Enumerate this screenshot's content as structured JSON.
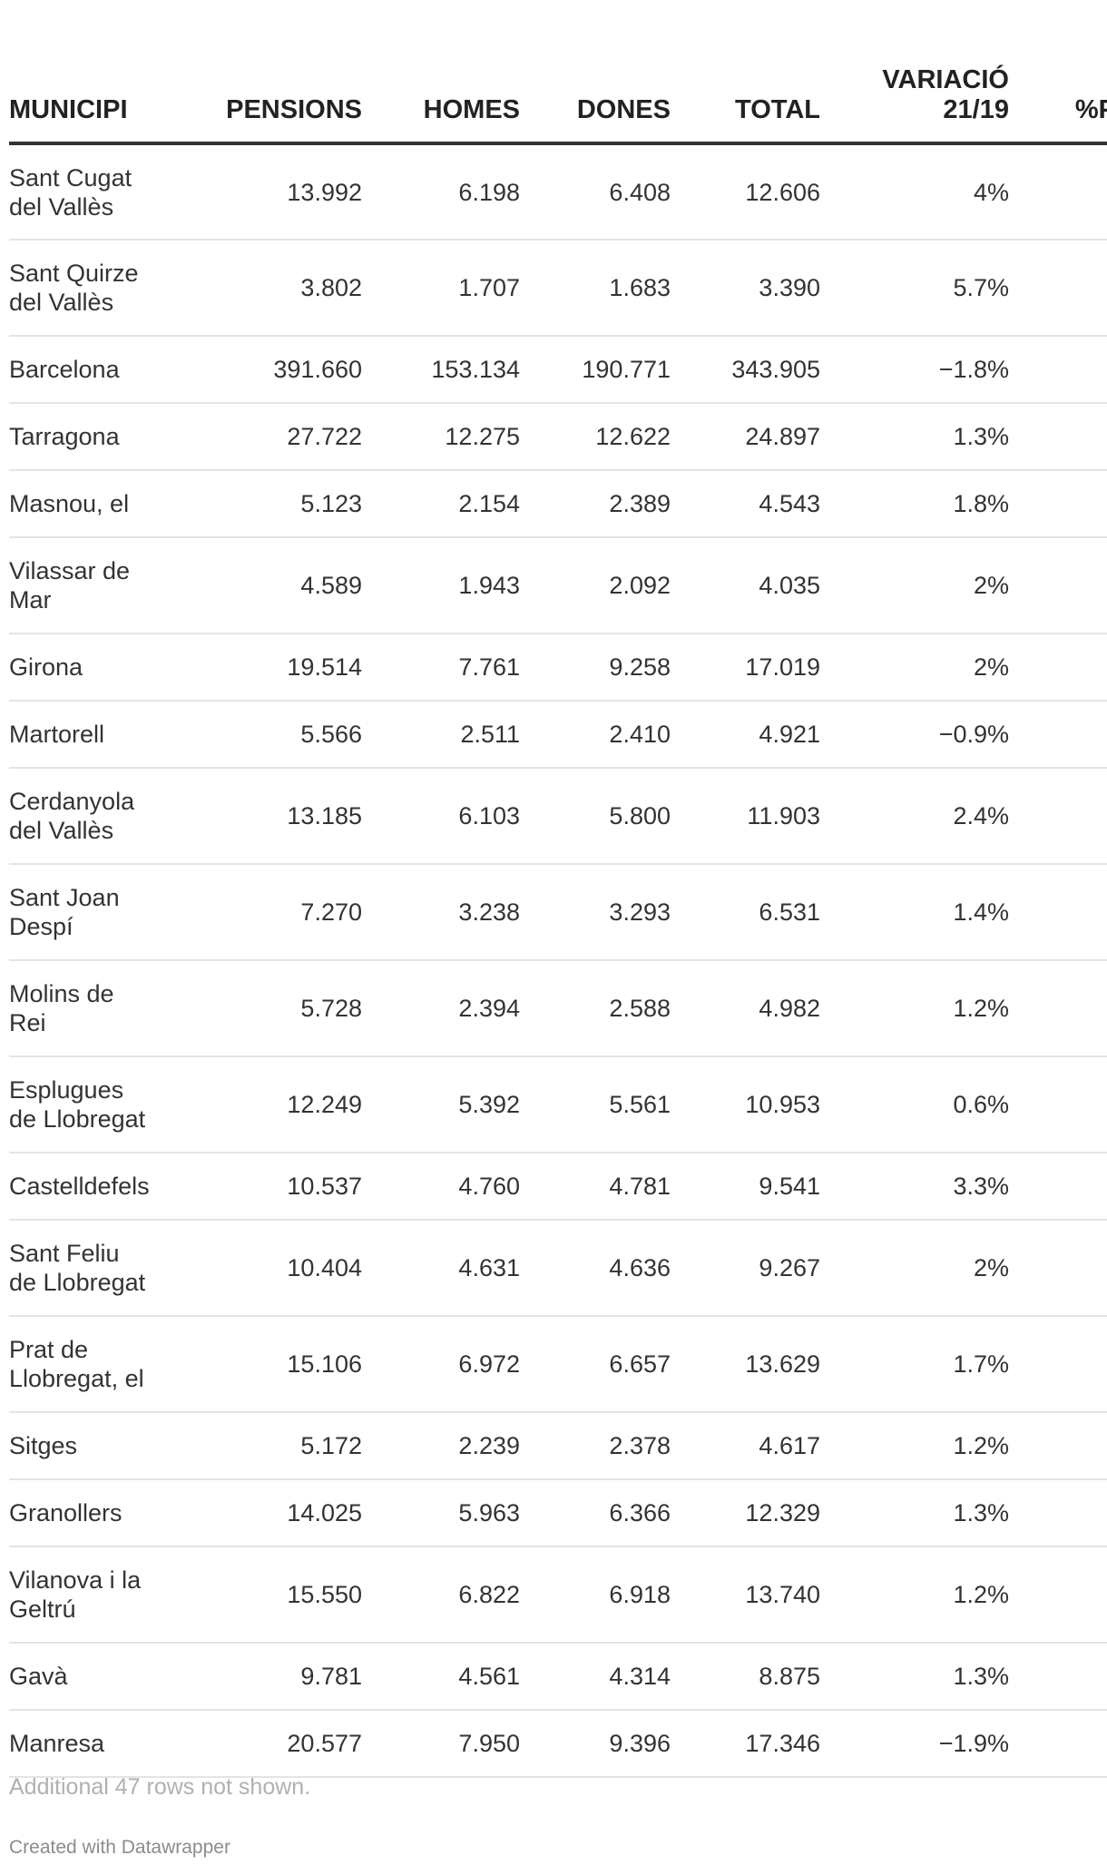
{
  "table": {
    "headers": {
      "municipi": "MUNICIPI",
      "pensions": "PENSIONS",
      "homes": "HOMES",
      "dones": "DONES",
      "total": "TOTAL",
      "variacio_line1": "VARIACIÓ",
      "variacio_line2": "21/19",
      "pct": "%P"
    },
    "rows": [
      {
        "municipi": "Sant Cugat del Vallès",
        "pensions": "13.992",
        "homes": "6.198",
        "dones": "6.408",
        "total": "12.606",
        "variacio": "4%",
        "pct": ""
      },
      {
        "municipi": "Sant Quirze del Vallès",
        "pensions": "3.802",
        "homes": "1.707",
        "dones": "1.683",
        "total": "3.390",
        "variacio": "5.7%",
        "pct": ""
      },
      {
        "municipi": "Barcelona",
        "pensions": "391.660",
        "homes": "153.134",
        "dones": "190.771",
        "total": "343.905",
        "variacio": "−1.8%",
        "pct": ""
      },
      {
        "municipi": "Tarragona",
        "pensions": "27.722",
        "homes": "12.275",
        "dones": "12.622",
        "total": "24.897",
        "variacio": "1.3%",
        "pct": ""
      },
      {
        "municipi": "Masnou, el",
        "pensions": "5.123",
        "homes": "2.154",
        "dones": "2.389",
        "total": "4.543",
        "variacio": "1.8%",
        "pct": ""
      },
      {
        "municipi": "Vilassar de Mar",
        "pensions": "4.589",
        "homes": "1.943",
        "dones": "2.092",
        "total": "4.035",
        "variacio": "2%",
        "pct": ""
      },
      {
        "municipi": "Girona",
        "pensions": "19.514",
        "homes": "7.761",
        "dones": "9.258",
        "total": "17.019",
        "variacio": "2%",
        "pct": ""
      },
      {
        "municipi": "Martorell",
        "pensions": "5.566",
        "homes": "2.511",
        "dones": "2.410",
        "total": "4.921",
        "variacio": "−0.9%",
        "pct": ""
      },
      {
        "municipi": "Cerdanyola del Vallès",
        "pensions": "13.185",
        "homes": "6.103",
        "dones": "5.800",
        "total": "11.903",
        "variacio": "2.4%",
        "pct": ""
      },
      {
        "municipi": "Sant Joan Despí",
        "pensions": "7.270",
        "homes": "3.238",
        "dones": "3.293",
        "total": "6.531",
        "variacio": "1.4%",
        "pct": ""
      },
      {
        "municipi": "Molins de Rei",
        "pensions": "5.728",
        "homes": "2.394",
        "dones": "2.588",
        "total": "4.982",
        "variacio": "1.2%",
        "pct": ""
      },
      {
        "municipi": "Esplugues de Llobregat",
        "pensions": "12.249",
        "homes": "5.392",
        "dones": "5.561",
        "total": "10.953",
        "variacio": "0.6%",
        "pct": ""
      },
      {
        "municipi": "Castelldefels",
        "pensions": "10.537",
        "homes": "4.760",
        "dones": "4.781",
        "total": "9.541",
        "variacio": "3.3%",
        "pct": ""
      },
      {
        "municipi": "Sant Feliu de Llobregat",
        "pensions": "10.404",
        "homes": "4.631",
        "dones": "4.636",
        "total": "9.267",
        "variacio": "2%",
        "pct": ""
      },
      {
        "municipi": "Prat de Llobregat, el",
        "pensions": "15.106",
        "homes": "6.972",
        "dones": "6.657",
        "total": "13.629",
        "variacio": "1.7%",
        "pct": ""
      },
      {
        "municipi": "Sitges",
        "pensions": "5.172",
        "homes": "2.239",
        "dones": "2.378",
        "total": "4.617",
        "variacio": "1.2%",
        "pct": ""
      },
      {
        "municipi": "Granollers",
        "pensions": "14.025",
        "homes": "5.963",
        "dones": "6.366",
        "total": "12.329",
        "variacio": "1.3%",
        "pct": ""
      },
      {
        "municipi": "Vilanova i la Geltrú",
        "pensions": "15.550",
        "homes": "6.822",
        "dones": "6.918",
        "total": "13.740",
        "variacio": "1.2%",
        "pct": ""
      },
      {
        "municipi": "Gavà",
        "pensions": "9.781",
        "homes": "4.561",
        "dones": "4.314",
        "total": "8.875",
        "variacio": "1.3%",
        "pct": ""
      },
      {
        "municipi": "Manresa",
        "pensions": "20.577",
        "homes": "7.950",
        "dones": "9.396",
        "total": "17.346",
        "variacio": "−1.9%",
        "pct": ""
      }
    ]
  },
  "footer": {
    "note": "Additional 47 rows not shown.",
    "credit": "Created with Datawrapper"
  }
}
